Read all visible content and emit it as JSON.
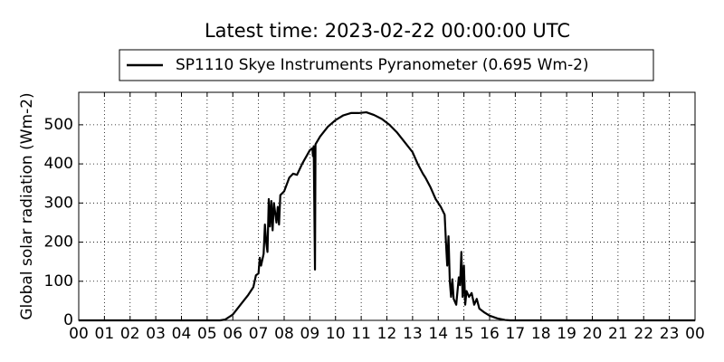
{
  "chart_data": {
    "type": "line",
    "title": "Latest time: 2023-02-22 00:00:00 UTC",
    "y_label": "Global solar radiation (Wm-2)",
    "x": [
      0,
      5.0,
      5.5,
      5.7,
      6.0,
      6.3,
      6.6,
      6.8,
      6.9,
      7.0,
      7.05,
      7.1,
      7.2,
      7.25,
      7.3,
      7.35,
      7.4,
      7.45,
      7.5,
      7.55,
      7.6,
      7.7,
      7.75,
      7.8,
      7.85,
      8.0,
      8.2,
      8.35,
      8.5,
      8.7,
      9.0,
      9.1,
      9.12,
      9.15,
      9.2,
      9.22,
      9.4,
      9.7,
      10.0,
      10.3,
      10.6,
      10.9,
      11.2,
      11.5,
      11.8,
      12.1,
      12.4,
      12.7,
      13.0,
      13.2,
      13.4,
      13.5,
      13.7,
      13.9,
      14.1,
      14.25,
      14.3,
      14.35,
      14.4,
      14.45,
      14.5,
      14.55,
      14.6,
      14.7,
      14.8,
      14.85,
      14.9,
      14.95,
      15.0,
      15.05,
      15.1,
      15.2,
      15.3,
      15.4,
      15.5,
      15.6,
      15.8,
      16.0,
      16.3,
      16.6,
      16.8,
      24
    ],
    "series": [
      {
        "name": "SP1110 Skye Instruments Pyranometer (0.695 Wm-2)",
        "color": "#000000",
        "values": [
          0,
          0,
          0,
          2,
          15,
          40,
          65,
          85,
          115,
          120,
          160,
          140,
          170,
          245,
          200,
          175,
          310,
          240,
          305,
          230,
          300,
          250,
          290,
          245,
          320,
          330,
          365,
          375,
          372,
          400,
          435,
          440,
          420,
          445,
          130,
          450,
          470,
          495,
          512,
          524,
          530,
          530,
          532,
          525,
          515,
          500,
          480,
          455,
          430,
          400,
          375,
          365,
          340,
          310,
          290,
          270,
          200,
          140,
          215,
          100,
          60,
          105,
          55,
          40,
          110,
          90,
          175,
          60,
          140,
          40,
          75,
          60,
          70,
          40,
          55,
          30,
          20,
          12,
          5,
          1,
          0,
          0
        ]
      }
    ],
    "xlim": [
      0,
      24
    ],
    "xticks": [
      {
        "value": 0,
        "label": "00"
      },
      {
        "value": 1,
        "label": "01"
      },
      {
        "value": 2,
        "label": "02"
      },
      {
        "value": 3,
        "label": "03"
      },
      {
        "value": 4,
        "label": "04"
      },
      {
        "value": 5,
        "label": "05"
      },
      {
        "value": 6,
        "label": "06"
      },
      {
        "value": 7,
        "label": "07"
      },
      {
        "value": 8,
        "label": "08"
      },
      {
        "value": 9,
        "label": "09"
      },
      {
        "value": 10,
        "label": "10"
      },
      {
        "value": 11,
        "label": "11"
      },
      {
        "value": 12,
        "label": "12"
      },
      {
        "value": 13,
        "label": "13"
      },
      {
        "value": 14,
        "label": "14"
      },
      {
        "value": 15,
        "label": "15"
      },
      {
        "value": 16,
        "label": "16"
      },
      {
        "value": 17,
        "label": "17"
      },
      {
        "value": 18,
        "label": "18"
      },
      {
        "value": 19,
        "label": "19"
      },
      {
        "value": 20,
        "label": "20"
      },
      {
        "value": 21,
        "label": "21"
      },
      {
        "value": 22,
        "label": "22"
      },
      {
        "value": 23,
        "label": "23"
      },
      {
        "value": 24,
        "label": "00"
      }
    ],
    "ylim": [
      0,
      583
    ],
    "yticks": [
      0,
      100,
      200,
      300,
      400,
      500
    ],
    "grid": true,
    "legend": "top"
  }
}
